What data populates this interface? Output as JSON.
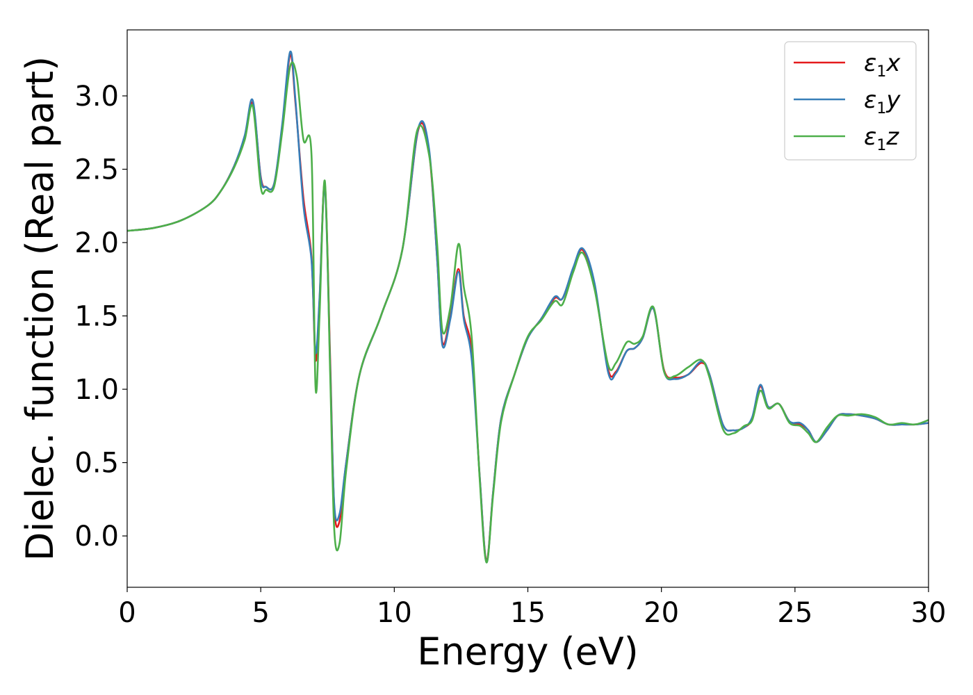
{
  "chart_data": {
    "type": "line",
    "title": "",
    "xlabel": "Energy (eV)",
    "ylabel": "Dielec. function (Real part)",
    "xlim": [
      0,
      30
    ],
    "ylim": [
      -0.35,
      3.45
    ],
    "xticks": [
      0,
      5,
      10,
      15,
      20,
      25,
      30
    ],
    "xtick_labels": [
      "0",
      "5",
      "10",
      "15",
      "20",
      "25",
      "30"
    ],
    "yticks": [
      0.0,
      0.5,
      1.0,
      1.5,
      2.0,
      2.5,
      3.0
    ],
    "ytick_labels": [
      "0.0",
      "0.5",
      "1.0",
      "1.5",
      "2.0",
      "2.5",
      "3.0"
    ],
    "grid": false,
    "legend_position": "top-right",
    "series": [
      {
        "name_base": "ε",
        "name_sub": "1",
        "name_suffix": "x",
        "color": "#e41a1c",
        "x": [
          0,
          1,
          2,
          3,
          3.5,
          4,
          4.4,
          4.7,
          5.0,
          5.2,
          5.5,
          5.8,
          6.1,
          6.3,
          6.6,
          6.9,
          7.05,
          7.2,
          7.4,
          7.6,
          7.75,
          7.95,
          8.2,
          8.7,
          9.5,
          10.3,
          10.9,
          11.3,
          11.6,
          11.8,
          12.1,
          12.4,
          12.6,
          12.9,
          13.2,
          13.45,
          13.7,
          14.0,
          14.5,
          15.0,
          15.5,
          16.0,
          16.3,
          16.7,
          17.05,
          17.5,
          18.0,
          18.3,
          18.7,
          19.0,
          19.3,
          19.7,
          20.1,
          20.5,
          21.0,
          21.5,
          21.8,
          22.3,
          22.7,
          23.1,
          23.4,
          23.7,
          24.0,
          24.4,
          24.8,
          25.2,
          25.5,
          25.8,
          26.2,
          26.6,
          27.0,
          27.5,
          28.0,
          28.5,
          29.0,
          29.5,
          30.0
        ],
        "y": [
          2.08,
          2.1,
          2.15,
          2.25,
          2.35,
          2.52,
          2.72,
          2.95,
          2.45,
          2.38,
          2.4,
          2.78,
          3.28,
          2.95,
          2.3,
          1.9,
          1.2,
          1.6,
          2.4,
          1.2,
          0.2,
          0.1,
          0.5,
          1.1,
          1.5,
          1.95,
          2.77,
          2.62,
          1.9,
          1.32,
          1.5,
          1.82,
          1.5,
          1.25,
          0.4,
          -0.17,
          0.3,
          0.8,
          1.1,
          1.35,
          1.48,
          1.62,
          1.62,
          1.82,
          1.95,
          1.7,
          1.14,
          1.12,
          1.26,
          1.28,
          1.35,
          1.55,
          1.13,
          1.08,
          1.1,
          1.18,
          1.1,
          0.76,
          0.72,
          0.74,
          0.8,
          1.02,
          0.88,
          0.9,
          0.78,
          0.76,
          0.72,
          0.64,
          0.72,
          0.82,
          0.83,
          0.82,
          0.8,
          0.76,
          0.76,
          0.76,
          0.77
        ]
      },
      {
        "name_base": "ε",
        "name_sub": "1",
        "name_suffix": "y",
        "color": "#377eb8",
        "x": [
          0,
          1,
          2,
          3,
          3.5,
          4,
          4.4,
          4.7,
          5.0,
          5.2,
          5.5,
          5.8,
          6.1,
          6.3,
          6.6,
          6.9,
          7.05,
          7.2,
          7.4,
          7.6,
          7.75,
          7.95,
          8.2,
          8.7,
          9.5,
          10.3,
          10.9,
          11.3,
          11.6,
          11.8,
          12.1,
          12.4,
          12.6,
          12.9,
          13.2,
          13.45,
          13.7,
          14.0,
          14.5,
          15.0,
          15.5,
          16.0,
          16.3,
          16.7,
          17.05,
          17.5,
          18.0,
          18.3,
          18.7,
          19.0,
          19.3,
          19.7,
          20.1,
          20.5,
          21.0,
          21.5,
          21.8,
          22.3,
          22.7,
          23.1,
          23.4,
          23.7,
          24.0,
          24.4,
          24.8,
          25.2,
          25.5,
          25.8,
          26.2,
          26.6,
          27.0,
          27.5,
          28.0,
          28.5,
          29.0,
          29.5,
          30.0
        ],
        "y": [
          2.08,
          2.1,
          2.15,
          2.25,
          2.35,
          2.52,
          2.73,
          2.97,
          2.44,
          2.38,
          2.4,
          2.8,
          3.3,
          2.97,
          2.25,
          1.88,
          1.25,
          1.62,
          2.38,
          1.15,
          0.22,
          0.15,
          0.5,
          1.1,
          1.5,
          1.95,
          2.78,
          2.64,
          1.9,
          1.3,
          1.48,
          1.8,
          1.48,
          1.2,
          0.4,
          -0.18,
          0.3,
          0.8,
          1.1,
          1.35,
          1.48,
          1.63,
          1.62,
          1.83,
          1.96,
          1.72,
          1.12,
          1.11,
          1.26,
          1.28,
          1.35,
          1.55,
          1.12,
          1.07,
          1.1,
          1.19,
          1.1,
          0.76,
          0.72,
          0.74,
          0.81,
          1.03,
          0.88,
          0.9,
          0.78,
          0.77,
          0.72,
          0.64,
          0.72,
          0.82,
          0.83,
          0.82,
          0.8,
          0.76,
          0.76,
          0.76,
          0.77
        ]
      },
      {
        "name_base": "ε",
        "name_sub": "1",
        "name_suffix": "z",
        "color": "#4daf4a",
        "x": [
          0,
          1,
          2,
          3,
          3.5,
          4,
          4.4,
          4.7,
          5.0,
          5.2,
          5.5,
          5.8,
          6.1,
          6.35,
          6.6,
          6.9,
          7.05,
          7.2,
          7.4,
          7.6,
          7.75,
          7.95,
          8.2,
          8.7,
          9.5,
          10.3,
          10.85,
          11.3,
          11.6,
          11.8,
          12.1,
          12.4,
          12.6,
          12.9,
          13.2,
          13.45,
          13.7,
          14.0,
          14.5,
          15.0,
          15.5,
          16.0,
          16.3,
          16.7,
          17.05,
          17.5,
          18.0,
          18.3,
          18.7,
          19.0,
          19.3,
          19.7,
          20.1,
          20.5,
          21.0,
          21.5,
          21.8,
          22.3,
          22.7,
          23.1,
          23.4,
          23.7,
          24.0,
          24.4,
          24.8,
          25.2,
          25.5,
          25.8,
          26.2,
          26.6,
          27.0,
          27.5,
          28.0,
          28.5,
          29.0,
          29.5,
          30.0
        ],
        "y": [
          2.08,
          2.1,
          2.15,
          2.25,
          2.35,
          2.51,
          2.7,
          2.93,
          2.38,
          2.36,
          2.38,
          2.75,
          3.2,
          3.13,
          2.7,
          2.6,
          1.02,
          1.5,
          2.42,
          1.1,
          0.05,
          -0.05,
          0.45,
          1.1,
          1.5,
          1.95,
          2.76,
          2.6,
          2.0,
          1.4,
          1.56,
          1.99,
          1.7,
          1.35,
          0.38,
          -0.18,
          0.28,
          0.78,
          1.1,
          1.36,
          1.47,
          1.6,
          1.58,
          1.8,
          1.93,
          1.68,
          1.17,
          1.18,
          1.32,
          1.31,
          1.36,
          1.56,
          1.12,
          1.09,
          1.15,
          1.2,
          1.08,
          0.73,
          0.7,
          0.75,
          0.79,
          0.99,
          0.87,
          0.9,
          0.77,
          0.75,
          0.7,
          0.64,
          0.74,
          0.82,
          0.82,
          0.83,
          0.81,
          0.76,
          0.77,
          0.76,
          0.79
        ]
      }
    ]
  }
}
